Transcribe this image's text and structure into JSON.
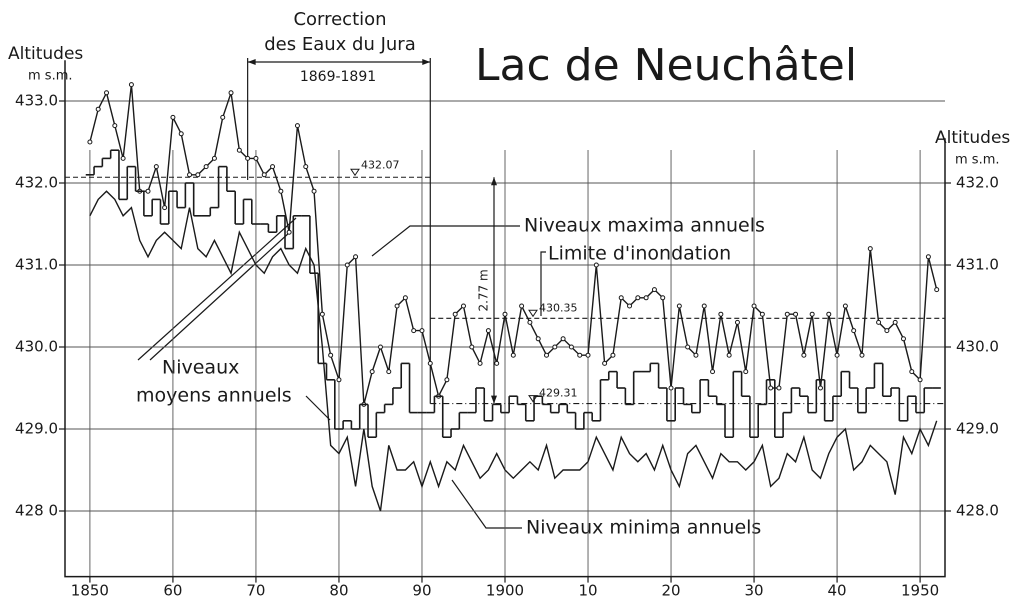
{
  "chart_data": {
    "type": "line",
    "title": "Lac de Neuchâtel",
    "y_label": [
      "Altitudes",
      "m s.m."
    ],
    "y2_label": [
      "Altitudes",
      "m s.m."
    ],
    "correction": {
      "title": [
        "Correction",
        "des Eaux du Jura"
      ],
      "period": "1869-1891",
      "start": 1869,
      "end": 1891
    },
    "difference_label": "2.77 m",
    "x": [
      1850,
      1851,
      1852,
      1853,
      1854,
      1855,
      1856,
      1857,
      1858,
      1859,
      1860,
      1861,
      1862,
      1863,
      1864,
      1865,
      1866,
      1867,
      1868,
      1869,
      1870,
      1871,
      1872,
      1873,
      1874,
      1875,
      1876,
      1877,
      1878,
      1879,
      1880,
      1881,
      1882,
      1883,
      1884,
      1885,
      1886,
      1887,
      1888,
      1889,
      1890,
      1891,
      1892,
      1893,
      1894,
      1895,
      1896,
      1897,
      1898,
      1899,
      1900,
      1901,
      1902,
      1903,
      1904,
      1905,
      1906,
      1907,
      1908,
      1909,
      1910,
      1911,
      1912,
      1913,
      1914,
      1915,
      1916,
      1917,
      1918,
      1919,
      1920,
      1921,
      1922,
      1923,
      1924,
      1925,
      1926,
      1927,
      1928,
      1929,
      1930,
      1931,
      1932,
      1933,
      1934,
      1935,
      1936,
      1937,
      1938,
      1939,
      1940,
      1941,
      1942,
      1943,
      1944,
      1945,
      1946,
      1947,
      1948,
      1949,
      1950,
      1951,
      1952
    ],
    "series": [
      {
        "name": "Niveaux maxima annuels",
        "color": "#1a1a1a",
        "marker": "circle",
        "values": [
          432.5,
          432.9,
          433.1,
          432.7,
          432.3,
          433.2,
          431.9,
          431.9,
          432.2,
          431.7,
          432.8,
          432.6,
          432.1,
          432.1,
          432.2,
          432.3,
          432.8,
          433.1,
          432.4,
          432.3,
          432.3,
          432.1,
          432.2,
          431.9,
          431.4,
          432.7,
          432.2,
          431.9,
          430.4,
          429.9,
          429.6,
          431.0,
          431.1,
          429.3,
          429.7,
          430.0,
          429.7,
          430.5,
          430.6,
          430.2,
          430.2,
          429.8,
          429.4,
          429.6,
          430.4,
          430.5,
          430.0,
          429.8,
          430.2,
          429.8,
          430.4,
          429.9,
          430.5,
          430.3,
          430.1,
          429.9,
          430.0,
          430.1,
          430.0,
          429.9,
          429.9,
          431.0,
          429.8,
          429.9,
          430.6,
          430.5,
          430.6,
          430.6,
          430.7,
          430.6,
          429.5,
          430.5,
          430.0,
          429.9,
          430.5,
          429.7,
          430.4,
          429.9,
          430.3,
          429.7,
          430.5,
          430.4,
          429.5,
          429.5,
          430.4,
          430.4,
          429.9,
          430.4,
          429.5,
          430.4,
          429.9,
          430.5,
          430.2,
          429.9,
          431.2,
          430.3,
          430.2,
          430.3,
          430.1,
          429.7,
          429.6,
          431.1,
          430.7
        ]
      },
      {
        "name": [
          "Niveaux",
          "moyens annuels"
        ],
        "color": "#1a1a1a",
        "step": true,
        "values": [
          432.1,
          432.2,
          432.3,
          432.4,
          431.8,
          432.2,
          431.9,
          431.6,
          431.8,
          431.5,
          431.9,
          431.7,
          432.0,
          431.6,
          431.6,
          431.7,
          432.2,
          431.9,
          431.5,
          431.8,
          431.5,
          431.5,
          431.4,
          431.6,
          431.2,
          431.6,
          431.6,
          430.9,
          429.8,
          429.6,
          429.0,
          429.1,
          429.0,
          429.3,
          428.9,
          429.2,
          429.3,
          429.5,
          429.8,
          429.2,
          429.2,
          429.2,
          429.4,
          428.9,
          429.0,
          429.2,
          429.2,
          429.5,
          429.1,
          429.3,
          429.2,
          429.4,
          429.3,
          429.1,
          429.4,
          429.3,
          429.2,
          429.3,
          429.2,
          429.0,
          429.2,
          429.1,
          429.6,
          429.7,
          429.5,
          429.3,
          429.7,
          429.7,
          429.8,
          429.5,
          429.1,
          429.5,
          429.3,
          429.2,
          429.6,
          429.4,
          429.3,
          428.9,
          429.7,
          429.4,
          428.9,
          429.3,
          429.6,
          428.9,
          429.2,
          429.5,
          429.4,
          429.2,
          429.6,
          429.1,
          429.4,
          429.7,
          429.5,
          429.2,
          429.5,
          429.8,
          429.4,
          429.5,
          429.1,
          429.4,
          429.2,
          429.5,
          429.5
        ]
      },
      {
        "name": "Niveaux minima annuels",
        "color": "#1a1a1a",
        "values": [
          431.6,
          431.8,
          431.9,
          431.8,
          431.6,
          431.7,
          431.3,
          431.1,
          431.3,
          431.4,
          431.3,
          431.2,
          431.7,
          431.2,
          431.1,
          431.3,
          431.1,
          430.9,
          431.4,
          431.2,
          431.0,
          430.9,
          431.1,
          431.2,
          431.0,
          430.9,
          431.2,
          431.0,
          430.0,
          428.8,
          428.7,
          428.9,
          428.3,
          429.0,
          428.3,
          428.0,
          428.8,
          428.5,
          428.5,
          428.6,
          428.3,
          428.6,
          428.3,
          428.6,
          428.5,
          428.8,
          428.6,
          428.4,
          428.5,
          428.7,
          428.5,
          428.4,
          428.5,
          428.6,
          428.5,
          428.8,
          428.4,
          428.5,
          428.5,
          428.5,
          428.6,
          428.9,
          428.7,
          428.5,
          428.9,
          428.7,
          428.6,
          428.7,
          428.5,
          428.8,
          428.5,
          428.3,
          428.7,
          428.8,
          428.6,
          428.4,
          428.7,
          428.6,
          428.6,
          428.5,
          428.6,
          428.8,
          428.3,
          428.4,
          428.7,
          428.6,
          428.9,
          428.5,
          428.4,
          428.7,
          428.9,
          429.0,
          428.5,
          428.6,
          428.8,
          428.7,
          428.6,
          428.2,
          428.9,
          428.7,
          429.0,
          428.8,
          429.1
        ]
      }
    ],
    "reference_lines": [
      {
        "value": 432.07,
        "from": 1847,
        "to": 1891
      },
      {
        "value": 430.35,
        "name": "Limite d'inondation",
        "from": 1891,
        "to": 1953
      },
      {
        "value": 429.31,
        "from": 1891,
        "to": 1953
      }
    ],
    "xlim": [
      1847,
      1953
    ],
    "xticks": [
      1850,
      {
        "value": 1860,
        "label": "60"
      },
      {
        "value": 1870,
        "label": "70"
      },
      {
        "value": 1880,
        "label": "80"
      },
      {
        "value": 1890,
        "label": "90"
      },
      1900,
      {
        "value": 1910,
        "label": "10"
      },
      {
        "value": 1920,
        "label": "20"
      },
      {
        "value": 1930,
        "label": "30"
      },
      {
        "value": 1940,
        "label": "40"
      },
      1950
    ],
    "ylim": [
      427.2,
      433.4
    ],
    "yticks": [
      {
        "value": 428,
        "label": "428 0"
      },
      {
        "value": 429,
        "label": "429.0"
      },
      {
        "value": 430,
        "label": "430.0"
      },
      {
        "value": 431,
        "label": "431.0"
      },
      {
        "value": 432,
        "label": "432.0"
      },
      {
        "value": 433,
        "label": "433.0"
      }
    ],
    "y2lim": [
      427.2,
      433.4
    ],
    "y2ticks": [
      {
        "value": 428,
        "label": "428.0"
      },
      {
        "value": 429,
        "label": "429.0"
      },
      {
        "value": 430,
        "label": "430.0"
      },
      {
        "value": 431,
        "label": "431.0"
      },
      {
        "value": 432,
        "label": "432.0"
      }
    ],
    "grid": true
  }
}
